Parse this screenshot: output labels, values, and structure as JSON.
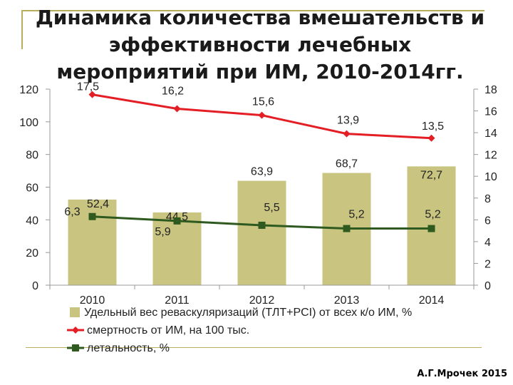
{
  "title_lines": [
    "Динамика количества вмешательств и",
    "эффективности лечебных",
    "мероприятий при ИМ, 2010-2014гг."
  ],
  "author": "А.Г.Мрочек 2015",
  "colors": {
    "bar": "#c9c47f",
    "mortality": "#e31e24",
    "lethality": "#2e5a1f",
    "frame": "#b7ae5e"
  },
  "chart_data": {
    "type": "bar",
    "categories": [
      "2010",
      "2011",
      "2012",
      "2013",
      "2014"
    ],
    "left_axis": {
      "ylim": [
        0,
        120
      ],
      "ticks": [
        "0",
        "20",
        "40",
        "60",
        "80",
        "100",
        "120"
      ]
    },
    "right_axis": {
      "ylim": [
        0,
        18
      ],
      "ticks": [
        "0",
        "2",
        "4",
        "6",
        "8",
        "10",
        "12",
        "14",
        "16",
        "18"
      ]
    },
    "series": [
      {
        "name": "Удельный вес реваскуляризаций (ТЛТ+PCI) от всех к/о ИМ, %",
        "type": "bar",
        "axis": "left",
        "values": [
          52.4,
          44.5,
          63.9,
          68.7,
          72.7
        ],
        "labels": [
          "52,4",
          "44,5",
          "63,9",
          "68,7",
          "72,7"
        ]
      },
      {
        "name": "смертность от ИМ, на 100 тыс.",
        "type": "line",
        "axis": "right",
        "values": [
          17.5,
          16.2,
          15.6,
          13.9,
          13.5
        ],
        "labels": [
          "17,5",
          "16,2",
          "15,6",
          "13,9",
          "13,5"
        ]
      },
      {
        "name": "летальность, %",
        "type": "line",
        "axis": "right",
        "values": [
          6.3,
          5.9,
          5.5,
          5.2,
          5.2
        ],
        "labels": [
          "6,3",
          "5,9",
          "5,5",
          "5,2",
          "5,2"
        ]
      }
    ]
  }
}
